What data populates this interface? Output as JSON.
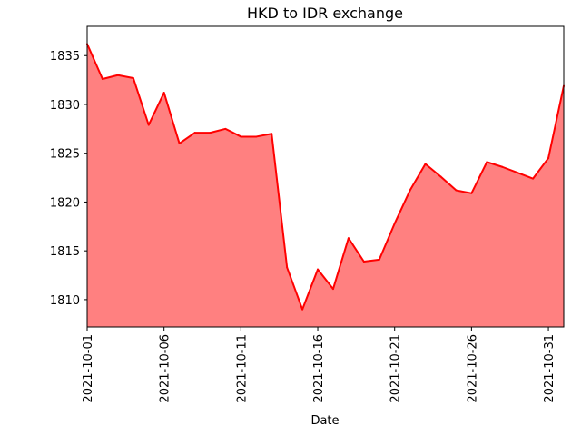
{
  "chart_data": {
    "type": "area",
    "title": "HKD to IDR exchange",
    "xlabel": "Date",
    "ylabel": "",
    "x": [
      "2021-10-01",
      "2021-10-02",
      "2021-10-03",
      "2021-10-04",
      "2021-10-05",
      "2021-10-06",
      "2021-10-07",
      "2021-10-08",
      "2021-10-09",
      "2021-10-10",
      "2021-10-11",
      "2021-10-12",
      "2021-10-13",
      "2021-10-14",
      "2021-10-15",
      "2021-10-16",
      "2021-10-17",
      "2021-10-18",
      "2021-10-19",
      "2021-10-20",
      "2021-10-21",
      "2021-10-22",
      "2021-10-23",
      "2021-10-24",
      "2021-10-25",
      "2021-10-26",
      "2021-10-27",
      "2021-10-28",
      "2021-10-29",
      "2021-10-30",
      "2021-10-31",
      "2021-11-01"
    ],
    "series": [
      {
        "values": [
          1836.2,
          1832.6,
          1833.0,
          1832.7,
          1827.9,
          1831.2,
          1826.0,
          1827.1,
          1827.1,
          1827.5,
          1826.7,
          1826.7,
          1827.0,
          1813.3,
          1809.0,
          1813.1,
          1811.1,
          1816.3,
          1813.9,
          1814.1,
          1817.8,
          1821.2,
          1823.9,
          1822.6,
          1821.2,
          1820.9,
          1824.1,
          1823.6,
          1823.0,
          1822.4,
          1824.5,
          1831.9
        ],
        "line_color": "#ff0000",
        "fill_color": "#ff8080"
      }
    ],
    "xlim": [
      "2021-10-01",
      "2021-11-01"
    ],
    "ylim": [
      1807.2,
      1838.0
    ],
    "xticks": [
      "2021-10-01",
      "2021-10-06",
      "2021-10-11",
      "2021-10-16",
      "2021-10-21",
      "2021-10-26",
      "2021-10-31"
    ],
    "yticks": [
      1810,
      1815,
      1820,
      1825,
      1830,
      1835
    ],
    "grid": false,
    "legend": "none"
  }
}
